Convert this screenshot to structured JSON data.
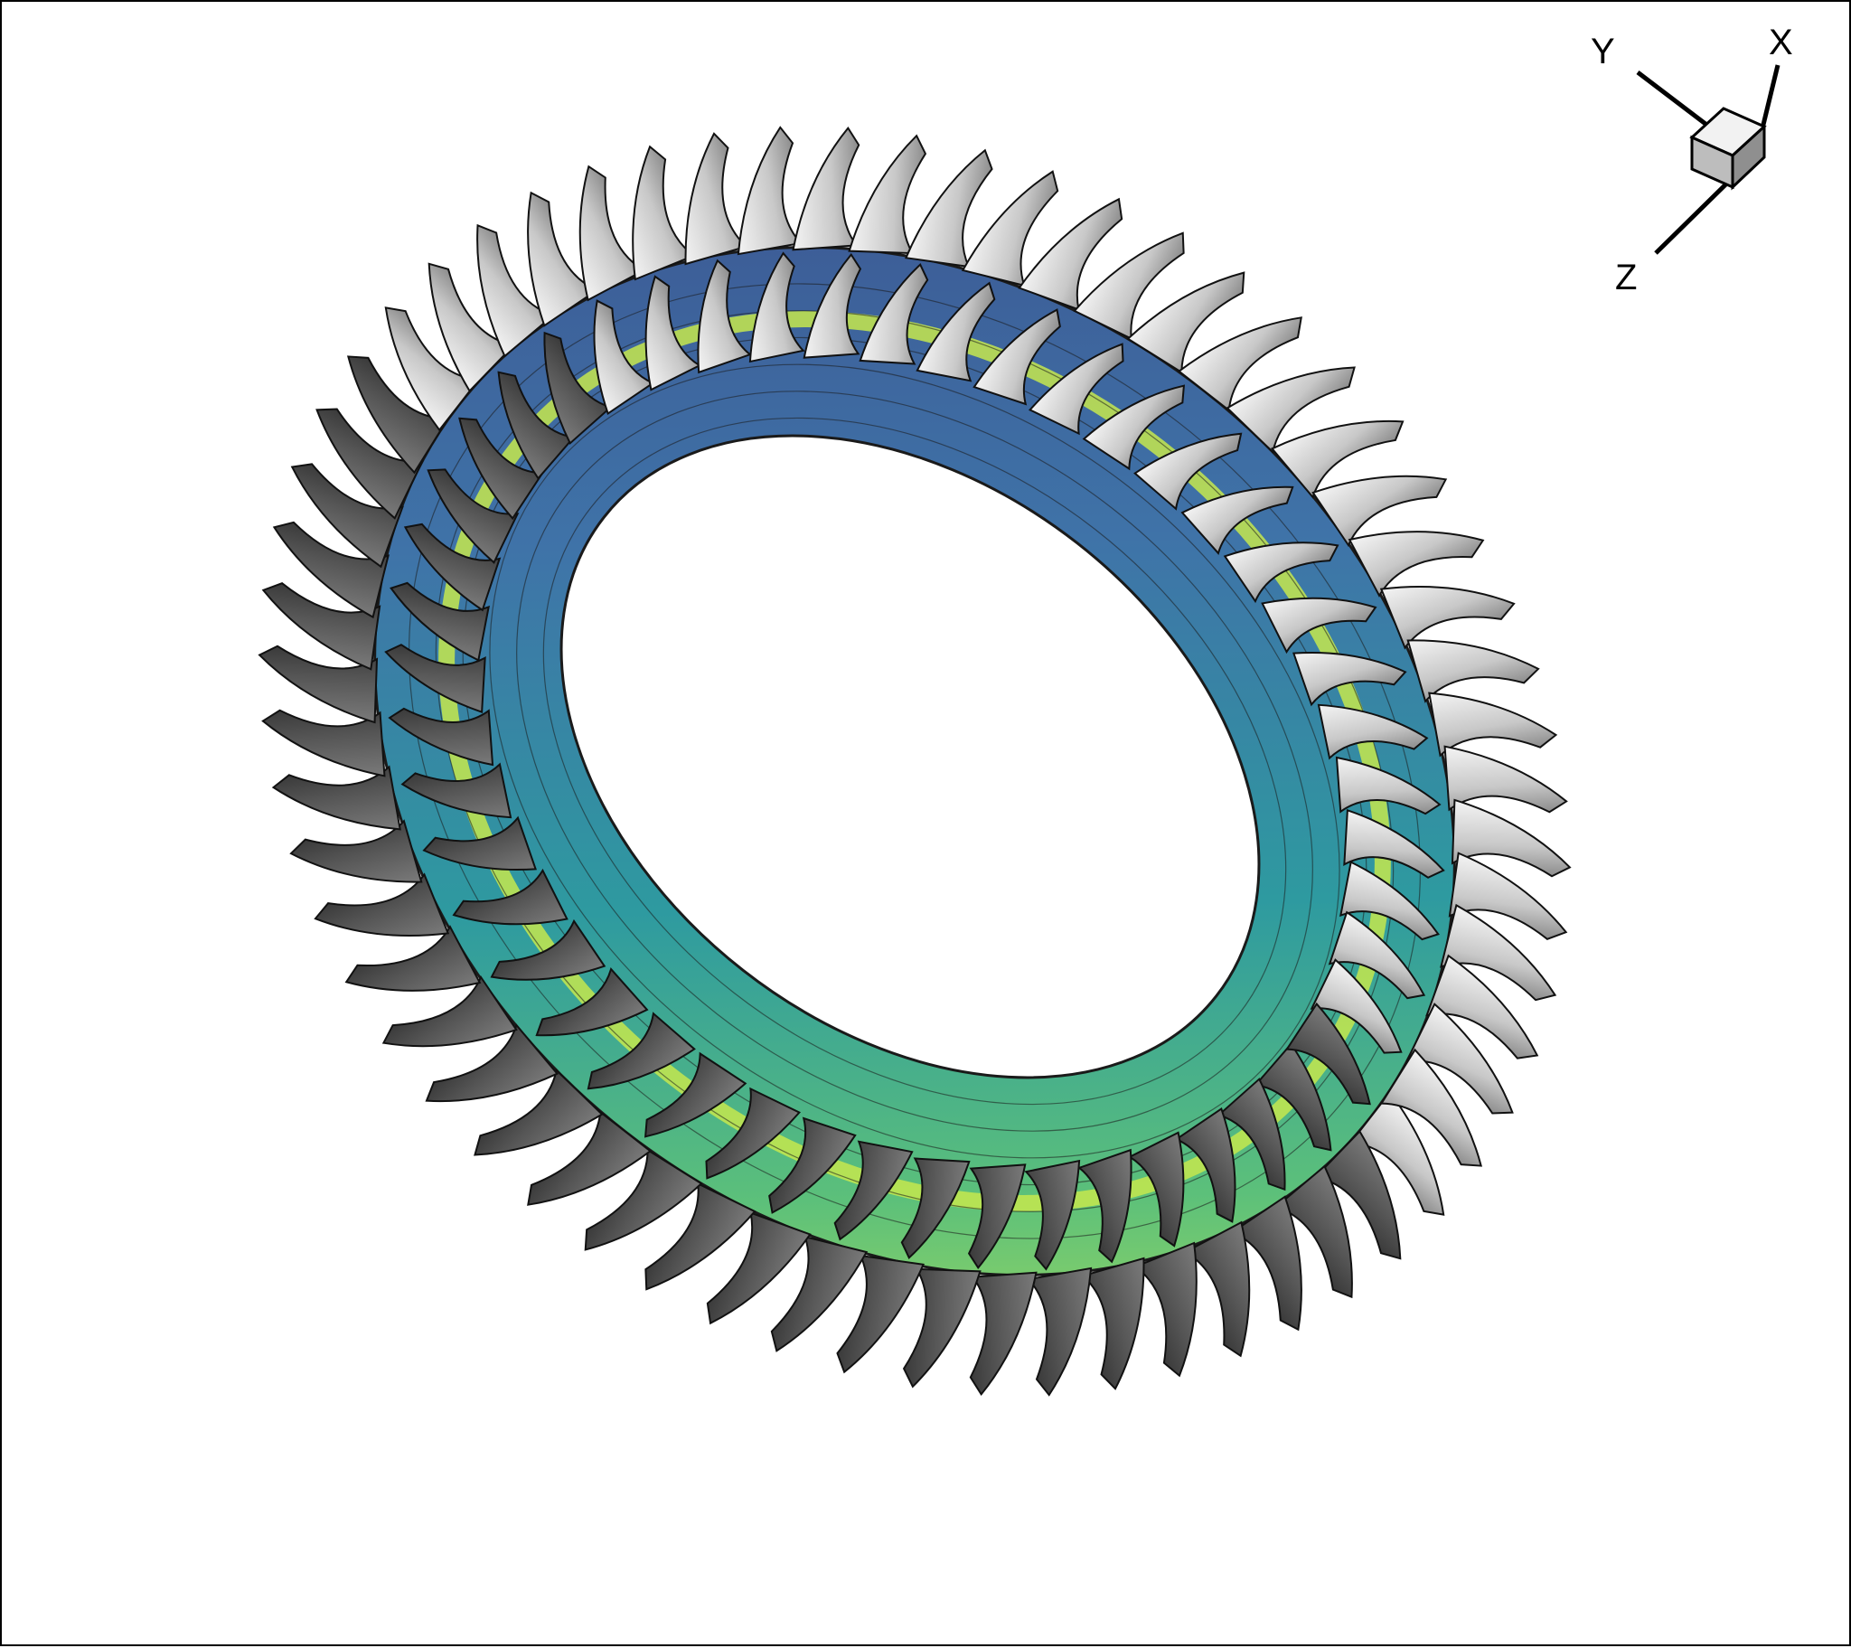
{
  "axes_triad": {
    "x_label": "X",
    "y_label": "Y",
    "z_label": "Z"
  },
  "colors": {
    "blade_light": "#d6d6d6",
    "blade_mid": "#9a9a9a",
    "blade_dark": "#555555",
    "contour_deep": "#3b4f8c",
    "contour_blue": "#3f73a8",
    "contour_teal": "#2e9aa0",
    "contour_green": "#5cc07a",
    "contour_lime": "#c6e84e",
    "contour_line": "#1a1a1a"
  },
  "rings": {
    "outer_blade_count": 60,
    "inner_blade_count": 48
  }
}
